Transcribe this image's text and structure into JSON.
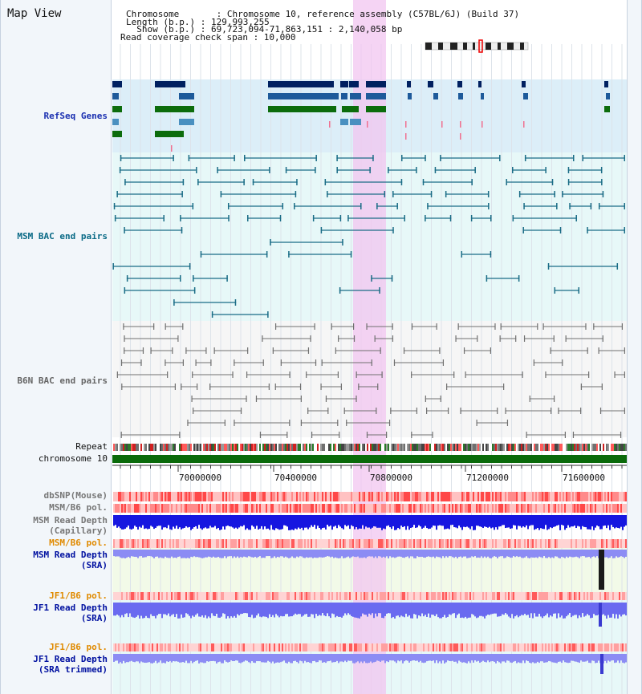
{
  "page_title": "Map View",
  "header": {
    "chromosome_line": "Chromosome       : Chromosome 10, reference assembly (C57BL/6J) (Build 37)",
    "length_line": "Length (b.p.) : 129,993,255",
    "show_line": "  Show (b.p.) : 69,723,094-71,863,151 : 2,140,058 bp",
    "span_line": "Read coverage check span : 10,000"
  },
  "tracks": {
    "refseq": "RefSeq Genes",
    "msm_bac": "MSM BAC end pairs",
    "b6n_bac": "B6N BAC end pairs",
    "repeat": "Repeat",
    "chrom": "chromosome 10",
    "dbsnp": "dbSNP(Mouse)",
    "msm_b6_pol_1": "MSM/B6 pol.",
    "msm_depth_cap_1": "MSM Read Depth",
    "msm_depth_cap_2": "(Capillary)",
    "msm_b6_pol_2": "MSM/B6 pol.",
    "msm_depth_sra_1": "MSM Read Depth",
    "msm_depth_sra_2": "(SRA)",
    "jf1_pol_1": "JF1/B6 pol.",
    "jf1_depth_sra_1": "JF1 Read Depth",
    "jf1_depth_sra_2": "(SRA)",
    "jf1_pol_2": "JF1/B6 pol.",
    "jf1_depth_trim_1": "JF1 Read Depth",
    "jf1_depth_trim_2": "(SRA trimmed)"
  },
  "axis_ticks": [
    "70000000",
    "70400000",
    "70800000",
    "71200000",
    "71600000"
  ],
  "colors": {
    "refseq_label": "#1a2fb0",
    "msm_bac_label": "#0a6a86",
    "b6n_bac_label": "#666666",
    "msm_pol_label": "#e08a00",
    "depth_label": "#0010a0",
    "highlight": "#f2c6f0",
    "chromosome_bar": "#0a6a0a"
  }
}
